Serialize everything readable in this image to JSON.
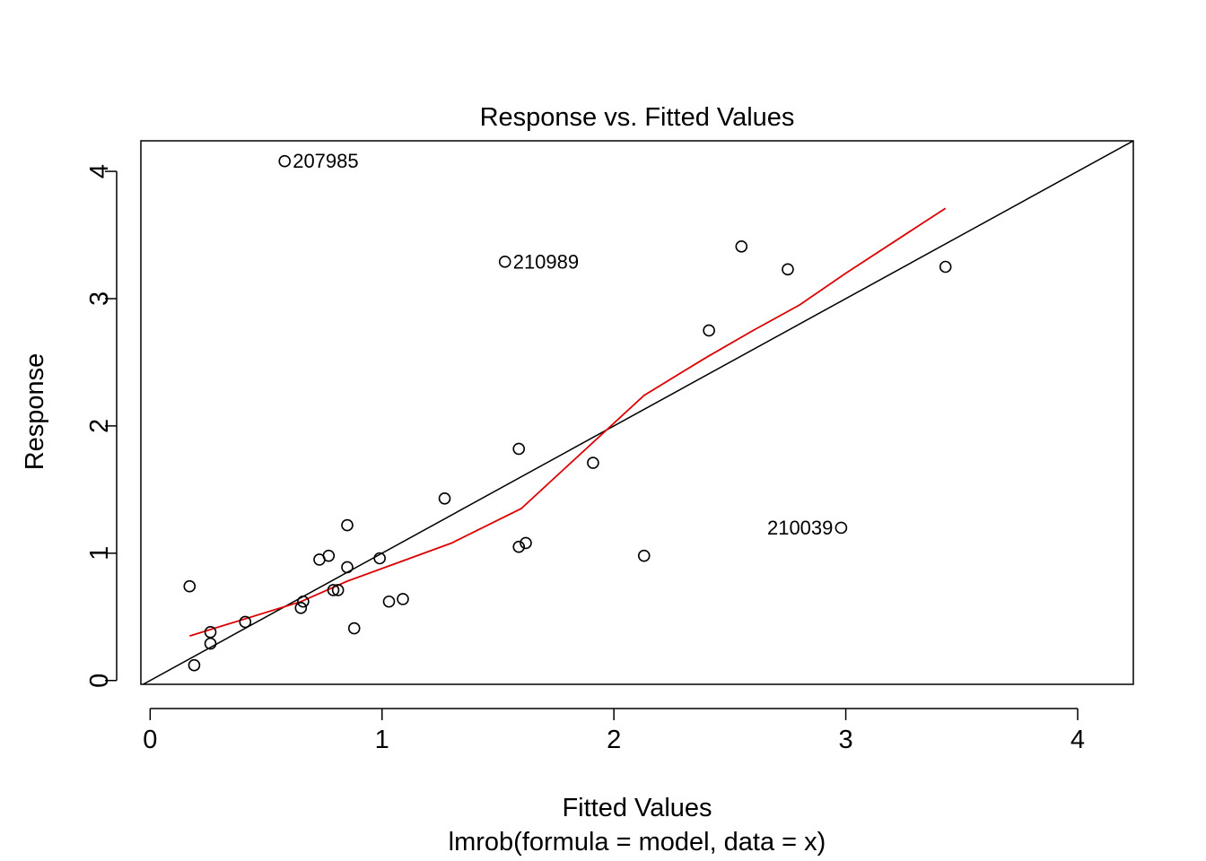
{
  "chart_data": {
    "type": "scatter",
    "title": "Response vs. Fitted Values",
    "xlabel": "Fitted Values",
    "subtitle": "lmrob(formula = model, data = x)",
    "ylabel": "Response",
    "xlim": [
      -0.04,
      4.24
    ],
    "ylim": [
      -0.03,
      4.24
    ],
    "xticks": [
      0,
      1,
      2,
      3,
      4
    ],
    "yticks": [
      0,
      1,
      2,
      3,
      4
    ],
    "grid": false,
    "points": [
      {
        "x": 0.17,
        "y": 0.74
      },
      {
        "x": 0.19,
        "y": 0.12
      },
      {
        "x": 0.26,
        "y": 0.29
      },
      {
        "x": 0.26,
        "y": 0.38
      },
      {
        "x": 0.41,
        "y": 0.46
      },
      {
        "x": 0.58,
        "y": 4.08,
        "label": "207985"
      },
      {
        "x": 0.65,
        "y": 0.57
      },
      {
        "x": 0.66,
        "y": 0.62
      },
      {
        "x": 0.73,
        "y": 0.95
      },
      {
        "x": 0.77,
        "y": 0.98
      },
      {
        "x": 0.79,
        "y": 0.71
      },
      {
        "x": 0.81,
        "y": 0.71
      },
      {
        "x": 0.85,
        "y": 1.22
      },
      {
        "x": 0.85,
        "y": 0.89
      },
      {
        "x": 0.88,
        "y": 0.41
      },
      {
        "x": 0.99,
        "y": 0.96
      },
      {
        "x": 1.03,
        "y": 0.62
      },
      {
        "x": 1.09,
        "y": 0.64
      },
      {
        "x": 1.27,
        "y": 1.43
      },
      {
        "x": 1.53,
        "y": 3.29,
        "label": "210989"
      },
      {
        "x": 1.59,
        "y": 1.82
      },
      {
        "x": 1.59,
        "y": 1.05
      },
      {
        "x": 1.62,
        "y": 1.08
      },
      {
        "x": 1.91,
        "y": 1.71
      },
      {
        "x": 2.13,
        "y": 0.98
      },
      {
        "x": 2.41,
        "y": 2.75
      },
      {
        "x": 2.55,
        "y": 3.41
      },
      {
        "x": 2.75,
        "y": 3.23
      },
      {
        "x": 2.98,
        "y": 1.2,
        "label": "210039"
      },
      {
        "x": 3.43,
        "y": 3.25
      }
    ],
    "reference_line": {
      "intercept": 0,
      "slope": 1,
      "color": "#000000"
    },
    "smooth_line": {
      "color": "#dd0000",
      "x": [
        0.17,
        0.65,
        0.85,
        1.0,
        1.3,
        1.6,
        2.13,
        2.4,
        2.6,
        2.8,
        3.0,
        3.43
      ],
      "y": [
        0.35,
        0.62,
        0.78,
        0.88,
        1.08,
        1.35,
        2.24,
        2.54,
        2.75,
        2.95,
        3.2,
        3.71
      ]
    }
  }
}
